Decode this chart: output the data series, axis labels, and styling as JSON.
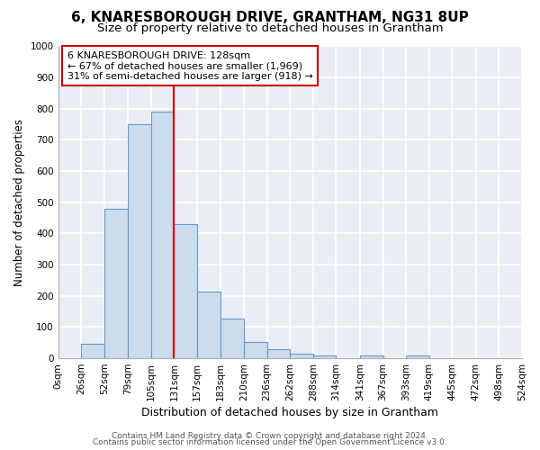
{
  "title": "6, KNARESBOROUGH DRIVE, GRANTHAM, NG31 8UP",
  "subtitle": "Size of property relative to detached houses in Grantham",
  "xlabel": "Distribution of detached houses by size in Grantham",
  "ylabel": "Number of detached properties",
  "bar_edges": [
    0,
    26,
    52,
    79,
    105,
    131,
    157,
    183,
    210,
    236,
    262,
    288,
    314,
    341,
    367,
    393,
    419,
    445,
    472,
    498,
    524
  ],
  "bar_heights": [
    0,
    45,
    480,
    750,
    790,
    430,
    215,
    128,
    52,
    28,
    15,
    10,
    0,
    8,
    0,
    8,
    0,
    0,
    0,
    0
  ],
  "bar_color": "#ccdcec",
  "bar_edgecolor": "#6699cc",
  "property_line_x": 131,
  "property_line_color": "#cc0000",
  "annotation_line1": "6 KNARESBOROUGH DRIVE: 128sqm",
  "annotation_line2": "← 67% of detached houses are smaller (1,969)",
  "annotation_line3": "31% of semi-detached houses are larger (918) →",
  "annotation_box_color": "#ffffff",
  "annotation_box_edgecolor": "#cc0000",
  "ylim": [
    0,
    1000
  ],
  "xlim": [
    0,
    524
  ],
  "yticks": [
    0,
    100,
    200,
    300,
    400,
    500,
    600,
    700,
    800,
    900,
    1000
  ],
  "background_color": "#ffffff",
  "plot_bg_color": "#e8eef4",
  "grid_color": "#ffffff",
  "footer1": "Contains HM Land Registry data © Crown copyright and database right 2024.",
  "footer2": "Contains public sector information licensed under the Open Government Licence v3.0.",
  "title_fontsize": 11,
  "subtitle_fontsize": 9.5,
  "tick_label_fontsize": 7.5,
  "ylabel_fontsize": 8.5,
  "xlabel_fontsize": 9,
  "annotation_fontsize": 8,
  "footer_fontsize": 6.5
}
